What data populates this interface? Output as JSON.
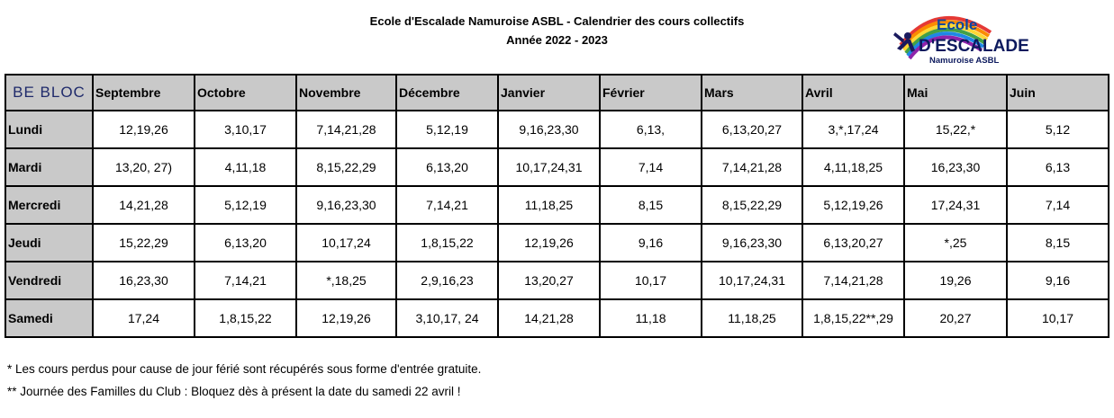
{
  "header": {
    "title_line1": "Ecole d'Escalade Namuroise ASBL - Calendrier des cours collectifs",
    "title_line2": "Année 2022 - 2023"
  },
  "logo": {
    "word1": "Ecole",
    "word2": "D'ESCALADE",
    "word3": "Namuroise ASBL",
    "colors": [
      "#e53935",
      "#fb8c00",
      "#fdd835",
      "#43a047",
      "#1e88e5",
      "#8e24aa"
    ]
  },
  "table": {
    "corner_label": "BE BLOC",
    "months": [
      "Septembre",
      "Octobre",
      "Novembre",
      "Décembre",
      "Janvier",
      "Février",
      "Mars",
      "Avril",
      "Mai",
      "Juin"
    ],
    "rows": [
      {
        "day": "Lundi",
        "cells": [
          "12,19,26",
          "3,10,17",
          "7,14,21,28",
          "5,12,19",
          "9,16,23,30",
          "6,13,",
          "6,13,20,27",
          "3,*,17,24",
          "15,22,*",
          "5,12"
        ]
      },
      {
        "day": "Mardi",
        "cells": [
          "13,20, 27)",
          "4,11,18",
          "8,15,22,29",
          "6,13,20",
          "10,17,24,31",
          "7,14",
          "7,14,21,28",
          "4,11,18,25",
          "16,23,30",
          "6,13"
        ]
      },
      {
        "day": "Mercredi",
        "cells": [
          "14,21,28",
          "5,12,19",
          "9,16,23,30",
          "7,14,21",
          "11,18,25",
          "8,15",
          "8,15,22,29",
          "5,12,19,26",
          "17,24,31",
          "7,14"
        ]
      },
      {
        "day": "Jeudi",
        "cells": [
          "15,22,29",
          "6,13,20",
          "10,17,24",
          "1,8,15,22",
          "12,19,26",
          "9,16",
          "9,16,23,30",
          "6,13,20,27",
          "*,25",
          "8,15"
        ]
      },
      {
        "day": "Vendredi",
        "cells": [
          "16,23,30",
          "7,14,21",
          "*,18,25",
          "2,9,16,23",
          "13,20,27",
          "10,17",
          "10,17,24,31",
          "7,14,21,28",
          "19,26",
          "9,16"
        ]
      },
      {
        "day": "Samedi",
        "cells": [
          "17,24",
          "1,8,15,22",
          "12,19,26",
          "3,10,17, 24",
          "14,21,28",
          "11,18",
          "11,18,25",
          "1,8,15,22**,29",
          "20,27",
          "10,17"
        ]
      }
    ]
  },
  "notes": {
    "note1": "* Les cours perdus pour cause de jour férié sont récupérés sous forme d'entrée gratuite.",
    "note2": "** Journée des Familles du Club : Bloquez dès à présent la date du samedi 22 avril !"
  }
}
